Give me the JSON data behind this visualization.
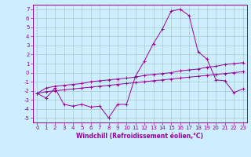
{
  "xlabel": "Windchill (Refroidissement éolien,°C)",
  "x_ticks": [
    0,
    1,
    2,
    3,
    4,
    5,
    6,
    7,
    8,
    9,
    10,
    11,
    12,
    13,
    14,
    15,
    16,
    17,
    18,
    19,
    20,
    21,
    22,
    23
  ],
  "ylim": [
    -5.5,
    7.5
  ],
  "xlim": [
    -0.5,
    23.5
  ],
  "yticks": [
    -5,
    -4,
    -3,
    -2,
    -1,
    0,
    1,
    2,
    3,
    4,
    5,
    6,
    7
  ],
  "bg_color": "#cceeff",
  "line_color": "#990099",
  "grid_color": "#aacccc",
  "line1_y": [
    -2.3,
    -2.8,
    -1.7,
    -3.5,
    -3.7,
    -3.5,
    -3.8,
    -3.7,
    -5.0,
    -3.5,
    -3.5,
    -0.4,
    1.3,
    3.2,
    4.8,
    6.8,
    7.0,
    6.3,
    2.3,
    1.5,
    -0.8,
    -0.9,
    -2.2,
    -1.8
  ],
  "line2_y": [
    -2.3,
    -1.7,
    -1.5,
    -1.4,
    -1.3,
    -1.2,
    -1.0,
    -0.9,
    -0.8,
    -0.7,
    -0.6,
    -0.5,
    -0.3,
    -0.2,
    -0.1,
    0.0,
    0.2,
    0.3,
    0.4,
    0.6,
    0.7,
    0.9,
    1.0,
    1.1
  ],
  "line3_y": [
    -2.3,
    -2.1,
    -2.0,
    -1.9,
    -1.8,
    -1.7,
    -1.6,
    -1.5,
    -1.4,
    -1.3,
    -1.2,
    -1.1,
    -1.0,
    -0.9,
    -0.8,
    -0.7,
    -0.6,
    -0.5,
    -0.4,
    -0.3,
    -0.2,
    -0.1,
    0.0,
    0.1
  ],
  "tick_fontsize": 5,
  "xlabel_fontsize": 5.5
}
